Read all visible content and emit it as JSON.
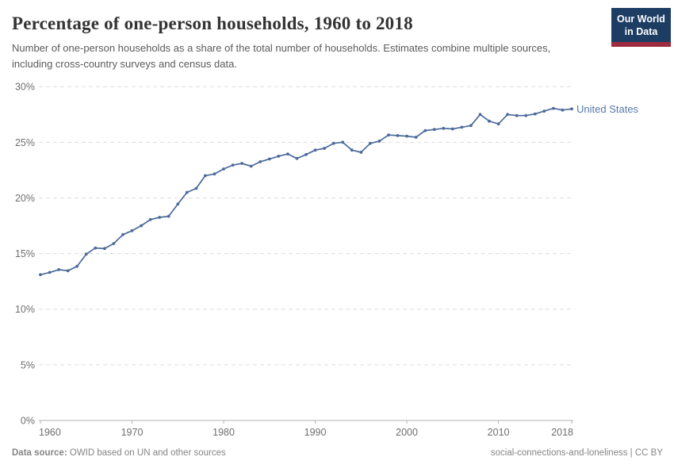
{
  "header": {
    "title": "Percentage of one-person households, 1960 to 2018",
    "subtitle": "Number of one-person households as a share of the total number of households. Estimates combine multiple sources, including cross-country surveys and census data.",
    "logo": {
      "line1": "Our World",
      "line2": "in Data"
    }
  },
  "chart_data": {
    "type": "line",
    "title": "Percentage of one-person households, 1960 to 2018",
    "xlabel": "",
    "ylabel": "",
    "xlim": [
      1960,
      2018
    ],
    "ylim": [
      0,
      30
    ],
    "grid": "horizontal-dashed",
    "legend_position": "end-of-line-label",
    "x_ticks": [
      1960,
      1970,
      1980,
      1990,
      2000,
      2010,
      2018
    ],
    "x_tick_labels": [
      "1960",
      "1970",
      "1980",
      "1990",
      "2000",
      "2010",
      "2018"
    ],
    "y_ticks": [
      0,
      5,
      10,
      15,
      20,
      25,
      30
    ],
    "y_tick_labels": [
      "0%",
      "5%",
      "10%",
      "15%",
      "20%",
      "25%",
      "30%"
    ],
    "series": [
      {
        "name": "United States",
        "x": [
          1960,
          1961,
          1962,
          1963,
          1964,
          1965,
          1966,
          1967,
          1968,
          1969,
          1970,
          1971,
          1972,
          1973,
          1974,
          1975,
          1976,
          1977,
          1978,
          1979,
          1980,
          1981,
          1982,
          1983,
          1984,
          1985,
          1986,
          1987,
          1988,
          1989,
          1990,
          1991,
          1992,
          1993,
          1994,
          1995,
          1996,
          1997,
          1998,
          1999,
          2000,
          2001,
          2002,
          2003,
          2004,
          2005,
          2006,
          2007,
          2008,
          2009,
          2010,
          2011,
          2012,
          2013,
          2014,
          2015,
          2016,
          2017,
          2018
        ],
        "values": [
          13.1,
          13.3,
          13.55,
          13.45,
          13.85,
          14.95,
          15.5,
          15.45,
          15.9,
          16.7,
          17.05,
          17.5,
          18.05,
          18.25,
          18.35,
          19.45,
          20.5,
          20.85,
          22.0,
          22.15,
          22.6,
          22.95,
          23.1,
          22.85,
          23.25,
          23.5,
          23.75,
          23.95,
          23.55,
          23.9,
          24.3,
          24.45,
          24.9,
          25.0,
          24.3,
          24.1,
          24.9,
          25.1,
          25.65,
          25.6,
          25.55,
          25.45,
          26.05,
          26.15,
          26.25,
          26.2,
          26.35,
          26.5,
          27.5,
          26.9,
          26.65,
          27.5,
          27.4,
          27.4,
          27.55,
          27.8,
          28.05,
          27.9,
          28.0
        ]
      }
    ]
  },
  "footer": {
    "datasource_label": "Data source:",
    "datasource_text": "OWID based on UN and other sources",
    "attribution": "social-connections-and-loneliness | CC BY"
  },
  "colors": {
    "line": "#4c6a9c",
    "entity_label": "#5878ab",
    "title": "#333333",
    "subtitle": "#5b5b5b",
    "axis_text": "#6e6e6e",
    "gridline": "#dddddd",
    "axis_line": "#b3b3b3",
    "footer_text": "#858585",
    "logo_bg": "#1d3d63",
    "logo_stripe": "#9e2b3f",
    "background": "#ffffff"
  }
}
